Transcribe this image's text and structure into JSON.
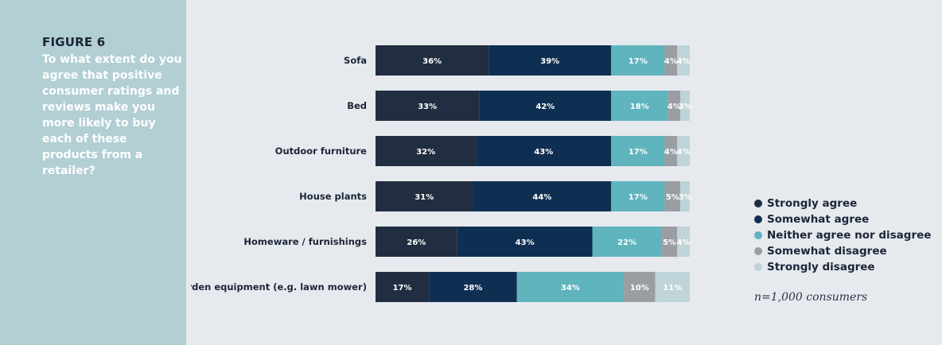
{
  "figure": {
    "label": "FIGURE 6",
    "question": "To what extent do you agree that positive consumer ratings and reviews make you more likely to buy each of these products from a retailer?"
  },
  "note": "n=1,000 consumers",
  "chart_data": {
    "type": "bar",
    "orientation": "horizontal",
    "stacked": true,
    "categories": [
      "Sofa",
      "Bed",
      "Outdoor furniture",
      "House plants",
      "Homeware / furnishings",
      "Garden equipment (e.g. lawn mower)"
    ],
    "series": [
      {
        "name": "Strongly agree",
        "color": "#212d40",
        "values": [
          36,
          33,
          32,
          31,
          26,
          17
        ]
      },
      {
        "name": "Somewhat agree",
        "color": "#0f2f52",
        "values": [
          39,
          42,
          43,
          44,
          43,
          28
        ]
      },
      {
        "name": "Neither agree nor disagree",
        "color": "#5fb4bd",
        "values": [
          17,
          18,
          17,
          17,
          22,
          34
        ]
      },
      {
        "name": "Somewhat disagree",
        "color": "#9a9ea3",
        "values": [
          4,
          4,
          4,
          5,
          5,
          10
        ]
      },
      {
        "name": "Strongly disagree",
        "color": "#bfd4d8",
        "values": [
          4,
          3,
          4,
          3,
          4,
          11
        ]
      }
    ],
    "value_suffix": "%",
    "legend_position": "right"
  }
}
